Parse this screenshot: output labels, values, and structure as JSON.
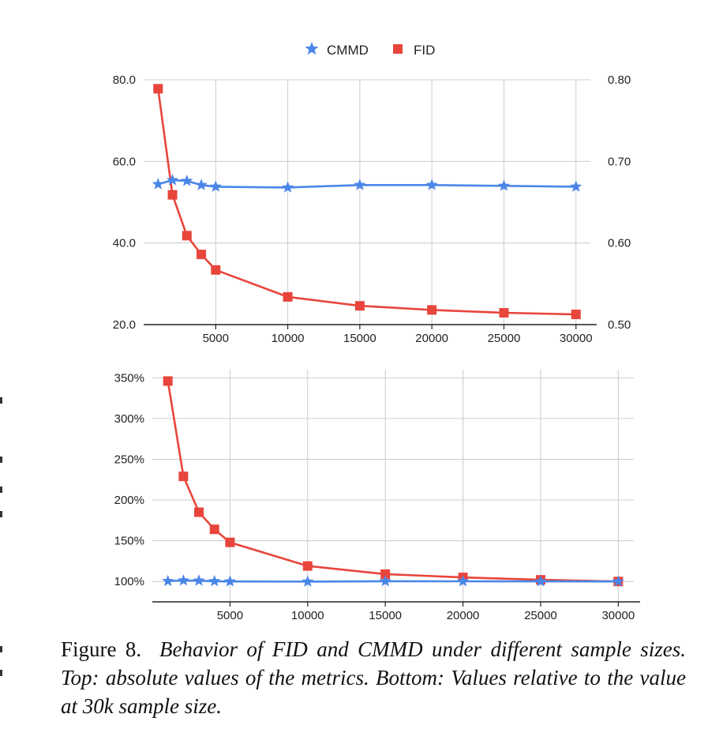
{
  "colors": {
    "cmmd": "#4a86e8",
    "fid": "#e8453c",
    "grid": "#cccccc",
    "axis": "#222222"
  },
  "legend": [
    {
      "name": "CMMD",
      "marker": "star-icon",
      "color": "#4a86e8"
    },
    {
      "name": "FID",
      "marker": "square-icon",
      "color": "#e8453c"
    }
  ],
  "chart_data": [
    {
      "type": "line",
      "x": [
        1000,
        2000,
        3000,
        4000,
        5000,
        10000,
        15000,
        20000,
        25000,
        30000
      ],
      "xticks": [
        "5000",
        "10000",
        "15000",
        "20000",
        "25000",
        "30000"
      ],
      "xlim": [
        0,
        31000
      ],
      "series": [
        {
          "name": "FID",
          "axis": "left",
          "values": [
            77.8,
            51.8,
            41.8,
            37.2,
            33.4,
            26.8,
            24.6,
            23.6,
            22.9,
            22.5
          ]
        },
        {
          "name": "CMMD",
          "axis": "right",
          "values": [
            0.672,
            0.677,
            0.676,
            0.671,
            0.669,
            0.668,
            0.671,
            0.671,
            0.67,
            0.669
          ]
        }
      ],
      "ylim_left": [
        20,
        80
      ],
      "yticks_left": [
        "80.0",
        "60.0",
        "40.0",
        "20.0"
      ],
      "ylim_right": [
        0.5,
        0.8
      ],
      "yticks_right": [
        "0.80",
        "0.70",
        "0.60",
        "0.50"
      ],
      "grid": true,
      "legend": "top-center"
    },
    {
      "type": "line",
      "x": [
        1000,
        2000,
        3000,
        4000,
        5000,
        10000,
        15000,
        20000,
        25000,
        30000
      ],
      "xticks": [
        "5000",
        "10000",
        "15000",
        "20000",
        "25000",
        "30000"
      ],
      "xlim": [
        0,
        31000
      ],
      "series": [
        {
          "name": "FID",
          "values": [
            346,
            229,
            185,
            164,
            148,
            119,
            109,
            105,
            102,
            100
          ]
        },
        {
          "name": "CMMD",
          "values": [
            100.5,
            101.2,
            101.0,
            100.3,
            100.0,
            99.8,
            100.3,
            100.2,
            100.1,
            100.0
          ]
        }
      ],
      "ylim": [
        75,
        360
      ],
      "yticks": [
        "350%",
        "300%",
        "250%",
        "200%",
        "150%",
        "100%"
      ],
      "grid": true
    }
  ],
  "caption": {
    "label": "Figure 8.",
    "text": "Behavior of FID and CMMD under different sample sizes. Top: absolute values of the metrics. Bottom: Values relative to the value at 30k sample size."
  }
}
